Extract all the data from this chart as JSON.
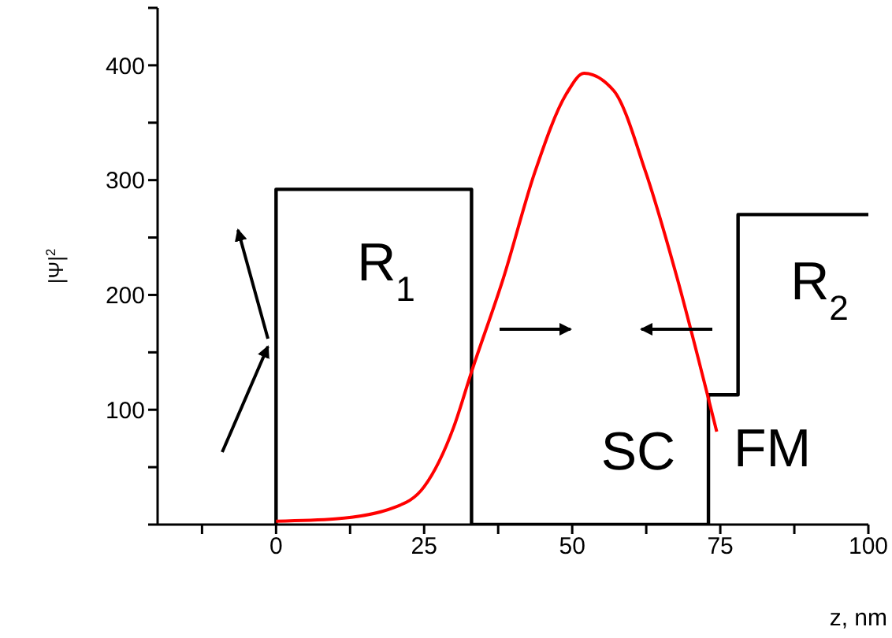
{
  "chart_data": {
    "type": "line",
    "ylabel": "|Ψ|$^{2}$",
    "xlabel": "z, nm",
    "xlim": [
      -20,
      100
    ],
    "xticks": [
      {
        "value": -12.5,
        "label": null
      },
      0,
      {
        "value": 12.5,
        "label": null
      },
      25,
      {
        "value": 37.5,
        "label": null
      },
      50,
      {
        "value": 62.5,
        "label": null
      },
      75,
      {
        "value": 87.5,
        "label": null
      },
      100
    ],
    "ylim": [
      0,
      450
    ],
    "yticks": [
      {
        "value": 0,
        "label": null
      },
      {
        "value": 50,
        "label": null
      },
      100,
      {
        "value": 150,
        "label": null
      },
      200,
      {
        "value": 250,
        "label": null
      },
      300,
      {
        "value": 350,
        "label": null
      },
      400,
      {
        "value": 450,
        "label": null
      }
    ],
    "grid": false,
    "legend": false,
    "marker": "none",
    "line_style": "solid",
    "series": [
      {
        "color": "#000000",
        "x": [
          0,
          0,
          33,
          33,
          73,
          73,
          78,
          78,
          100
        ],
        "values": [
          0,
          292,
          292,
          0,
          0,
          113,
          113,
          270,
          270
        ]
      },
      {
        "color": "#ff0000",
        "x": [
          0,
          10,
          20,
          25,
          30,
          33,
          38.4,
          43.7,
          49,
          52,
          57,
          62.4,
          67.7,
          72.3,
          74.4
        ],
        "values": [
          3,
          5,
          15,
          33,
          85,
          133,
          215,
          307,
          375,
          393,
          378,
          307,
          215,
          124,
          81
        ]
      }
    ],
    "annotations": [
      "R$_{1}$",
      "R$_{2}$",
      "SC",
      "FM"
    ]
  }
}
